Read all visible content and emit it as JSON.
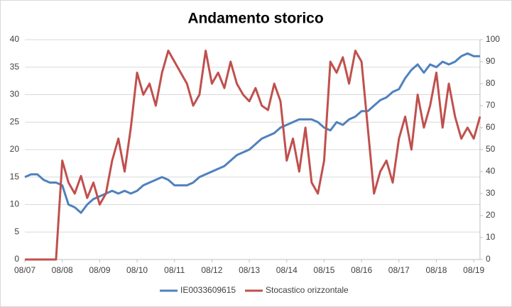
{
  "chart_data": {
    "type": "line",
    "title": "Andamento storico",
    "categories": [
      "08/07",
      null,
      null,
      null,
      null,
      null,
      "08/08",
      null,
      null,
      null,
      null,
      null,
      "08/09",
      null,
      null,
      null,
      null,
      null,
      "08/10",
      null,
      null,
      null,
      null,
      null,
      "08/11",
      null,
      null,
      null,
      null,
      null,
      "08/12",
      null,
      null,
      null,
      null,
      null,
      "08/13",
      null,
      null,
      null,
      null,
      null,
      "08/14",
      null,
      null,
      null,
      null,
      null,
      "08/15",
      null,
      null,
      null,
      null,
      null,
      "08/16",
      null,
      null,
      null,
      null,
      null,
      "08/17",
      null,
      null,
      null,
      null,
      null,
      "08/18",
      null,
      null,
      null,
      null,
      null,
      "08/19",
      null
    ],
    "series": [
      {
        "name": "IE0033609615",
        "color": "#4f81bd",
        "values": [
          15,
          15.5,
          15.5,
          14.5,
          14,
          14,
          13.5,
          10,
          9.5,
          8.5,
          10,
          11,
          11.5,
          12,
          12.5,
          12,
          12.5,
          12,
          12.5,
          13.5,
          14,
          14.5,
          15,
          14.5,
          13.5,
          13.5,
          13.5,
          14,
          15,
          15.5,
          16,
          16.5,
          17,
          18,
          19,
          19.5,
          20,
          21,
          22,
          22.5,
          23,
          24,
          24.5,
          25,
          25.5,
          25.5,
          25.5,
          25,
          24,
          23.5,
          25,
          24.5,
          25.5,
          26,
          27,
          27,
          28,
          29,
          29.5,
          30.5,
          31,
          33,
          34.5,
          35.5,
          34,
          35.5,
          35,
          36,
          35.5,
          36,
          37,
          37.5,
          37,
          37
        ]
      },
      {
        "name": "Stocastico orizzontale",
        "color": "#c0504d",
        "axis": "y2",
        "values": [
          0,
          0,
          0,
          0,
          0,
          0,
          45,
          35,
          30,
          38,
          28,
          35,
          25,
          30,
          45,
          55,
          40,
          60,
          85,
          75,
          80,
          70,
          85,
          95,
          90,
          85,
          80,
          70,
          75,
          95,
          80,
          85,
          78,
          90,
          80,
          75,
          72,
          78,
          70,
          68,
          80,
          72,
          45,
          55,
          40,
          60,
          35,
          30,
          45,
          90,
          85,
          92,
          80,
          95,
          90,
          60,
          30,
          40,
          45,
          35,
          55,
          65,
          50,
          75,
          60,
          70,
          85,
          60,
          80,
          65,
          55,
          60,
          55,
          65
        ]
      }
    ],
    "ylim": [
      0,
      40
    ],
    "yticks": [
      0,
      5,
      10,
      15,
      20,
      25,
      30,
      35,
      40
    ],
    "y2lim": [
      0,
      100
    ],
    "y2ticks": [
      0,
      10,
      20,
      30,
      40,
      50,
      60,
      70,
      80,
      90,
      100
    ],
    "grid": true,
    "legend": "bottom"
  }
}
